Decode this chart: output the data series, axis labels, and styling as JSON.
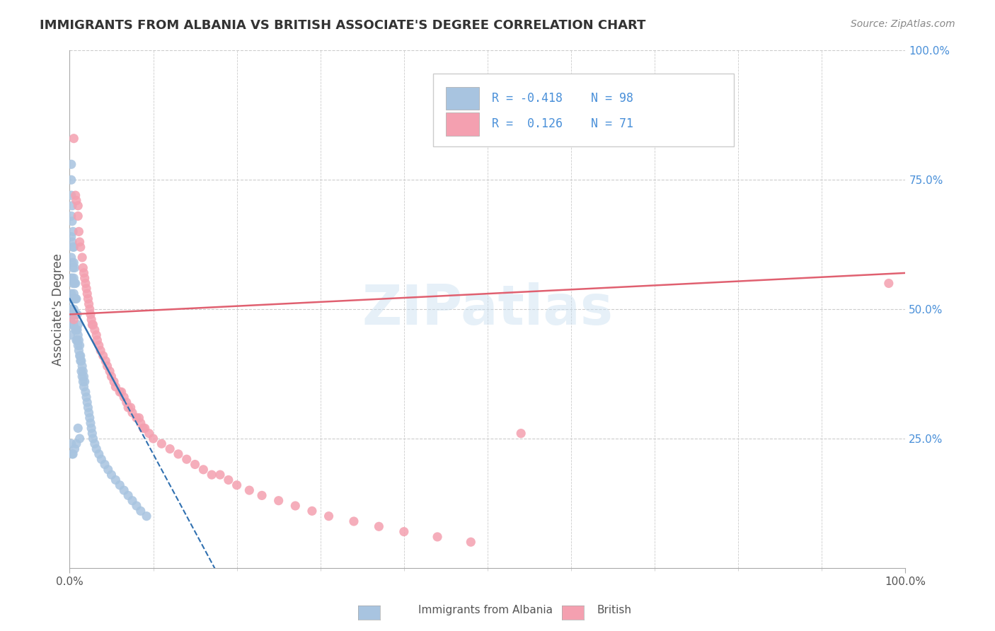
{
  "title": "IMMIGRANTS FROM ALBANIA VS BRITISH ASSOCIATE'S DEGREE CORRELATION CHART",
  "source": "Source: ZipAtlas.com",
  "ylabel": "Associate's Degree",
  "xlim": [
    0.0,
    1.0
  ],
  "ylim": [
    0.0,
    1.0
  ],
  "blue_color": "#a8c4e0",
  "pink_color": "#f4a0b0",
  "line_blue_color": "#3070b0",
  "line_pink_color": "#e06070",
  "legend_text_color": "#4a90d9",
  "watermark": "ZIPatlas",
  "blue_scatter_x": [
    0.001,
    0.001,
    0.001,
    0.001,
    0.001,
    0.002,
    0.002,
    0.002,
    0.002,
    0.002,
    0.002,
    0.002,
    0.002,
    0.002,
    0.003,
    0.003,
    0.003,
    0.003,
    0.003,
    0.003,
    0.003,
    0.004,
    0.004,
    0.004,
    0.004,
    0.004,
    0.004,
    0.005,
    0.005,
    0.005,
    0.005,
    0.005,
    0.005,
    0.006,
    0.006,
    0.006,
    0.006,
    0.007,
    0.007,
    0.007,
    0.007,
    0.008,
    0.008,
    0.008,
    0.008,
    0.009,
    0.009,
    0.009,
    0.01,
    0.01,
    0.01,
    0.011,
    0.011,
    0.012,
    0.012,
    0.013,
    0.013,
    0.014,
    0.014,
    0.015,
    0.015,
    0.016,
    0.016,
    0.017,
    0.017,
    0.018,
    0.019,
    0.02,
    0.021,
    0.022,
    0.023,
    0.024,
    0.025,
    0.026,
    0.027,
    0.028,
    0.03,
    0.032,
    0.035,
    0.038,
    0.042,
    0.046,
    0.05,
    0.055,
    0.06,
    0.065,
    0.07,
    0.075,
    0.08,
    0.085,
    0.092,
    0.01,
    0.012,
    0.008,
    0.006,
    0.004,
    0.003,
    0.002
  ],
  "blue_scatter_y": [
    0.5,
    0.52,
    0.48,
    0.47,
    0.45,
    0.78,
    0.75,
    0.72,
    0.68,
    0.64,
    0.6,
    0.56,
    0.53,
    0.5,
    0.7,
    0.67,
    0.63,
    0.59,
    0.56,
    0.52,
    0.49,
    0.65,
    0.62,
    0.58,
    0.55,
    0.52,
    0.49,
    0.62,
    0.59,
    0.56,
    0.53,
    0.5,
    0.47,
    0.58,
    0.55,
    0.52,
    0.49,
    0.55,
    0.52,
    0.49,
    0.46,
    0.52,
    0.49,
    0.46,
    0.44,
    0.49,
    0.46,
    0.44,
    0.47,
    0.45,
    0.43,
    0.44,
    0.42,
    0.43,
    0.41,
    0.41,
    0.4,
    0.4,
    0.38,
    0.39,
    0.37,
    0.38,
    0.36,
    0.37,
    0.35,
    0.36,
    0.34,
    0.33,
    0.32,
    0.31,
    0.3,
    0.29,
    0.28,
    0.27,
    0.26,
    0.25,
    0.24,
    0.23,
    0.22,
    0.21,
    0.2,
    0.19,
    0.18,
    0.17,
    0.16,
    0.15,
    0.14,
    0.13,
    0.12,
    0.11,
    0.1,
    0.27,
    0.25,
    0.24,
    0.23,
    0.22,
    0.22,
    0.24
  ],
  "pink_scatter_x": [
    0.005,
    0.007,
    0.008,
    0.01,
    0.01,
    0.011,
    0.012,
    0.013,
    0.015,
    0.016,
    0.017,
    0.018,
    0.019,
    0.02,
    0.021,
    0.022,
    0.023,
    0.024,
    0.025,
    0.026,
    0.027,
    0.028,
    0.03,
    0.032,
    0.033,
    0.035,
    0.037,
    0.04,
    0.043,
    0.045,
    0.048,
    0.05,
    0.053,
    0.055,
    0.06,
    0.062,
    0.065,
    0.068,
    0.07,
    0.073,
    0.075,
    0.08,
    0.083,
    0.085,
    0.088,
    0.09,
    0.095,
    0.1,
    0.11,
    0.12,
    0.13,
    0.14,
    0.15,
    0.16,
    0.17,
    0.18,
    0.19,
    0.2,
    0.215,
    0.23,
    0.25,
    0.27,
    0.29,
    0.31,
    0.34,
    0.37,
    0.4,
    0.44,
    0.48,
    0.98,
    0.54,
    0.005
  ],
  "pink_scatter_y": [
    0.83,
    0.72,
    0.71,
    0.7,
    0.68,
    0.65,
    0.63,
    0.62,
    0.6,
    0.58,
    0.57,
    0.56,
    0.55,
    0.54,
    0.53,
    0.52,
    0.51,
    0.5,
    0.49,
    0.48,
    0.47,
    0.47,
    0.46,
    0.45,
    0.44,
    0.43,
    0.42,
    0.41,
    0.4,
    0.39,
    0.38,
    0.37,
    0.36,
    0.35,
    0.34,
    0.34,
    0.33,
    0.32,
    0.31,
    0.31,
    0.3,
    0.29,
    0.29,
    0.28,
    0.27,
    0.27,
    0.26,
    0.25,
    0.24,
    0.23,
    0.22,
    0.21,
    0.2,
    0.19,
    0.18,
    0.18,
    0.17,
    0.16,
    0.15,
    0.14,
    0.13,
    0.12,
    0.11,
    0.1,
    0.09,
    0.08,
    0.07,
    0.06,
    0.05,
    0.55,
    0.26,
    0.48
  ]
}
